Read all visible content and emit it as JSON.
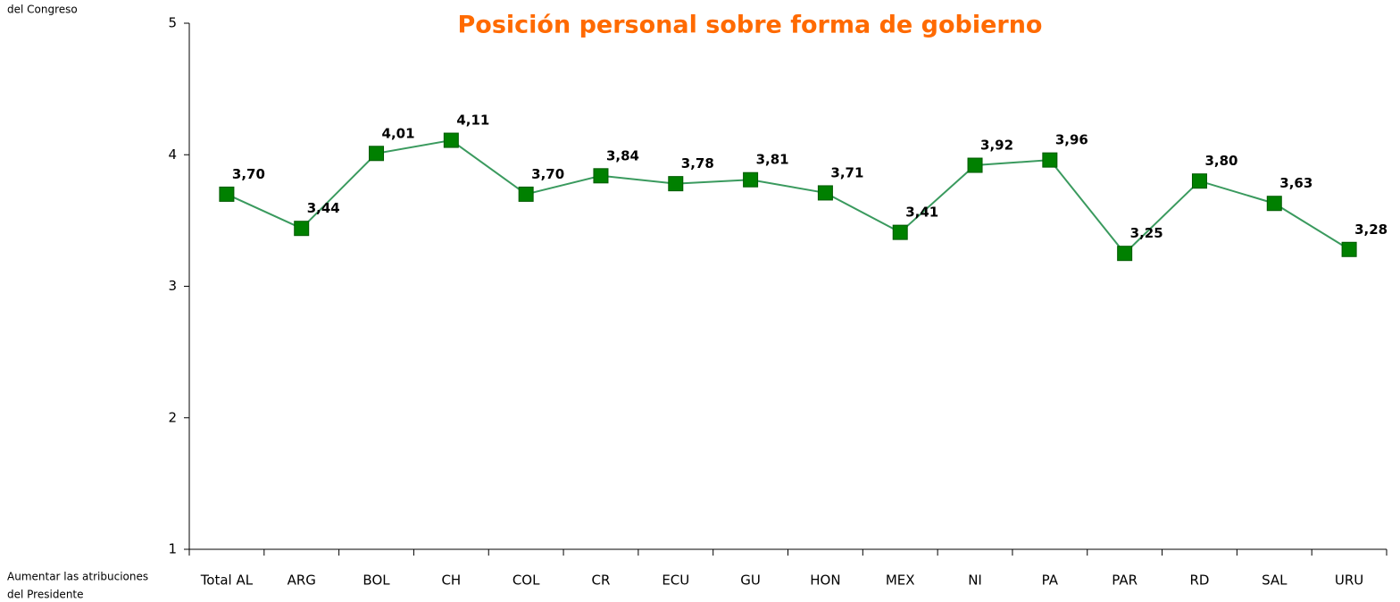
{
  "chart_data": {
    "type": "line",
    "title": "Posición personal sobre forma de gobierno",
    "annotations": [
      "del Congreso",
      "Aumentar las atribuciones",
      "del Presidente"
    ],
    "categories": [
      "Total AL",
      "ARG",
      "BOL",
      "CH",
      "COL",
      "CR",
      "ECU",
      "GU",
      "HON",
      "MEX",
      "NI",
      "PA",
      "PAR",
      "RD",
      "SAL",
      "URU"
    ],
    "series": [
      {
        "name": "Posición personal",
        "line_color": "#3a9a5e",
        "color": "#008000",
        "values": [
          3.7,
          3.44,
          4.01,
          4.11,
          3.7,
          3.84,
          3.78,
          3.81,
          3.71,
          3.41,
          3.92,
          3.96,
          3.25,
          3.8,
          3.63,
          3.28
        ],
        "value_labels": [
          "3,70",
          "3,44",
          "4,01",
          "4,11",
          "3,70",
          "3,84",
          "3,78",
          "3,81",
          "3,71",
          "3,41",
          "3,92",
          "3,96",
          "3,25",
          "3,80",
          "3,63",
          "3,28"
        ]
      }
    ],
    "ylim": [
      1,
      5
    ],
    "yticks": [
      1,
      2,
      3,
      4,
      5
    ],
    "title_color": "#ff6a00"
  }
}
